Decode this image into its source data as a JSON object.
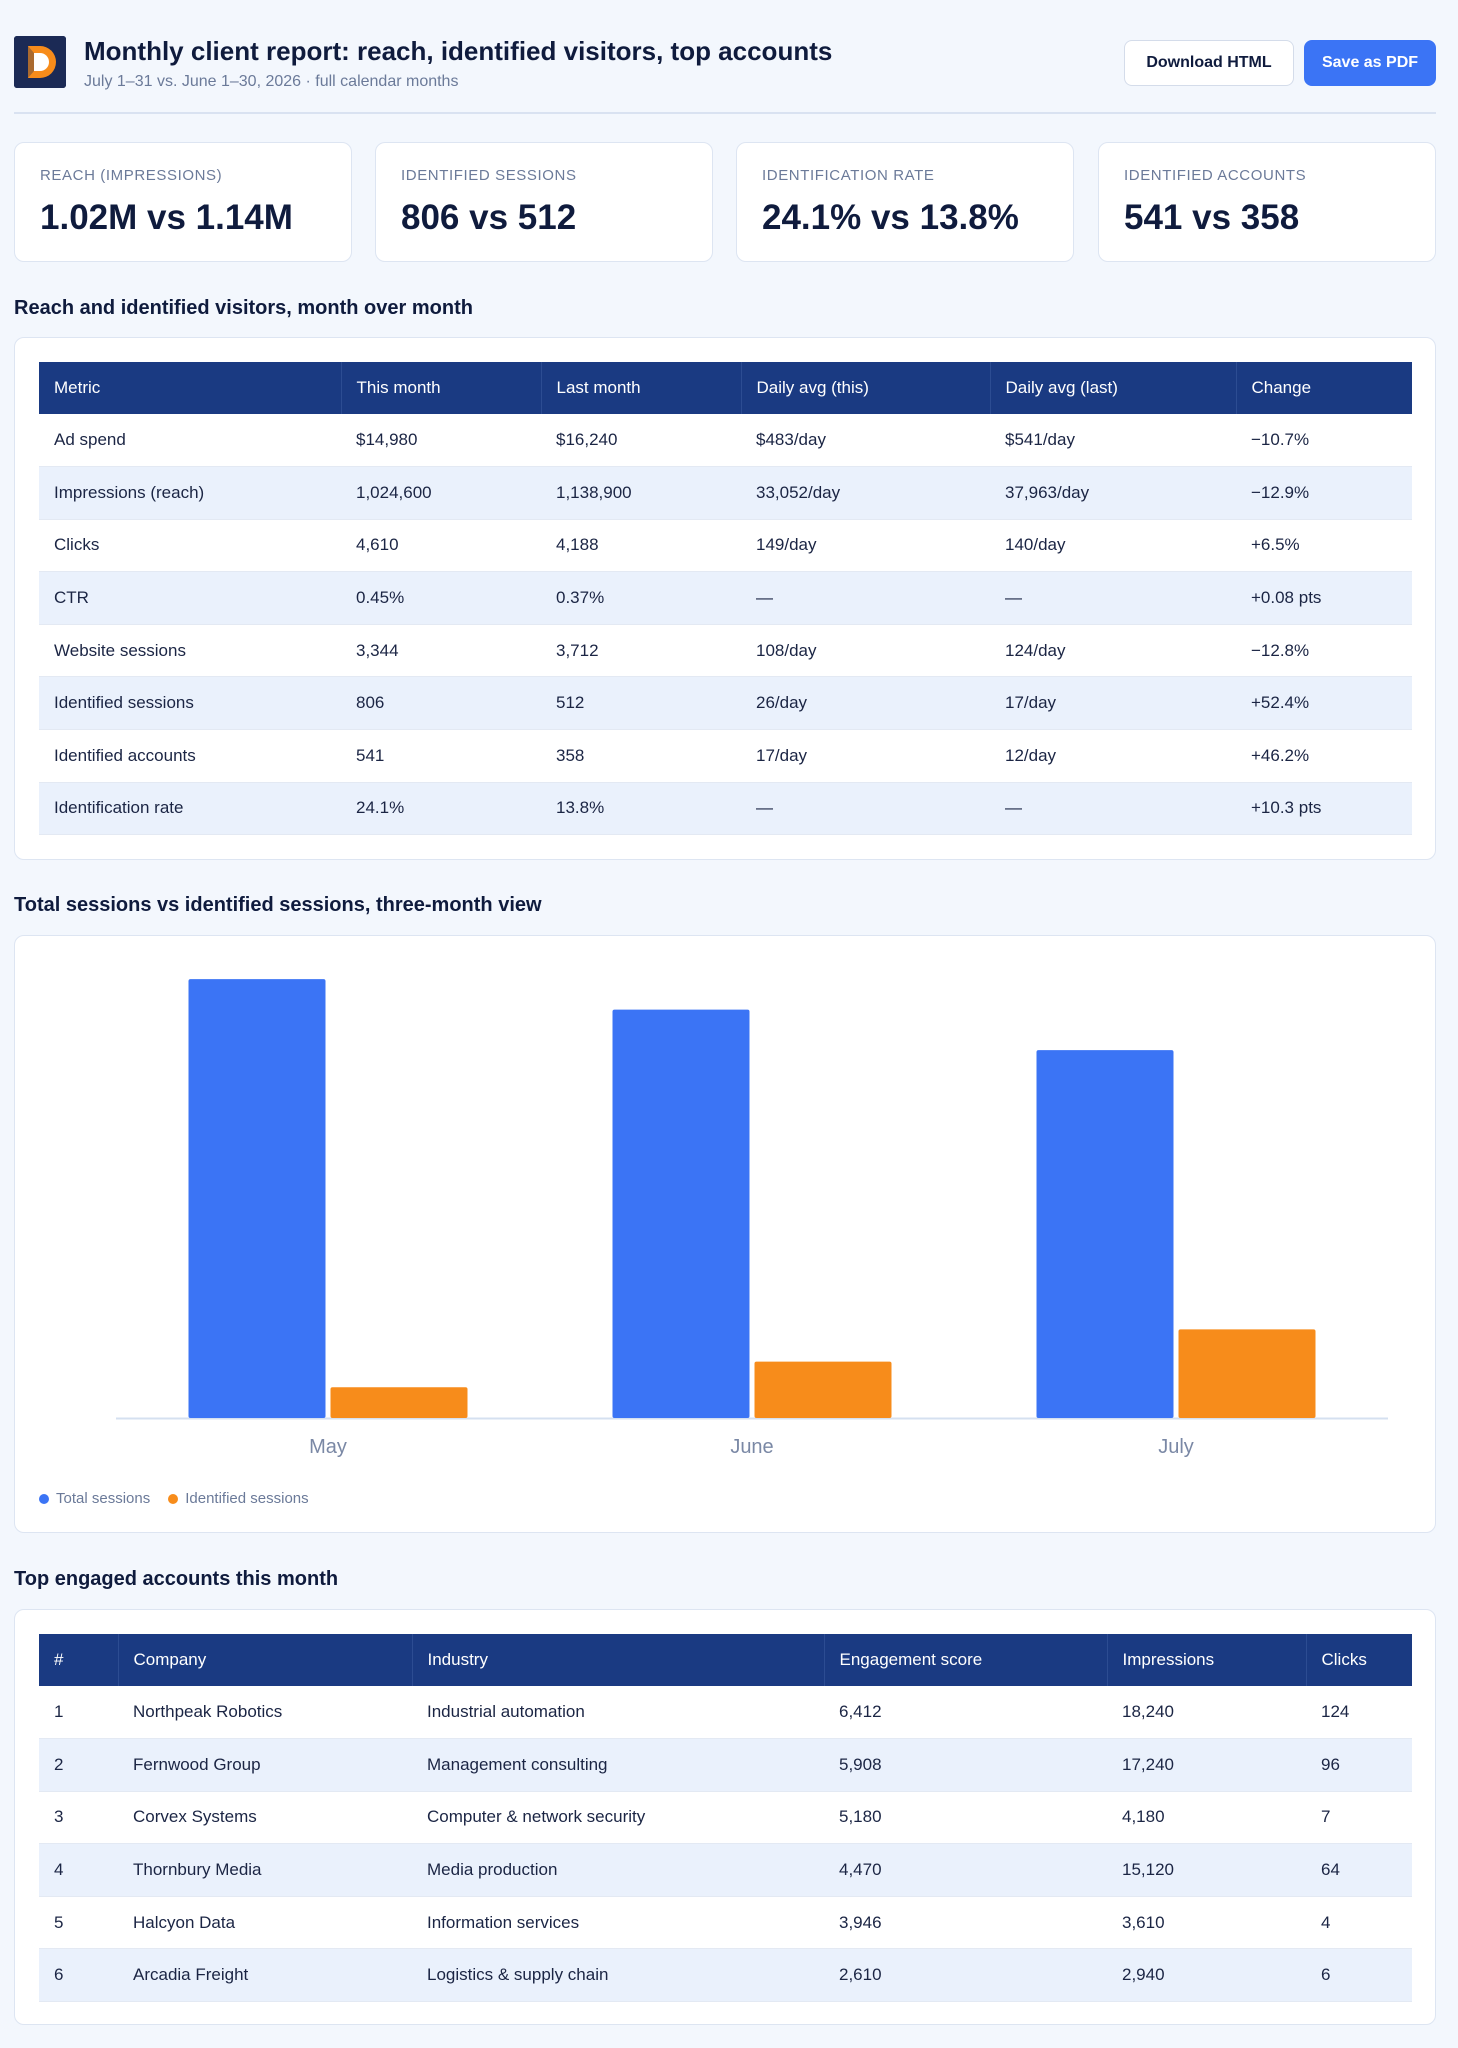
{
  "header": {
    "title": "Monthly client report: reach, identified visitors, top accounts",
    "subtitle": "July 1–31 vs. June 1–30, 2026 · full calendar months",
    "download_label": "Download HTML",
    "save_label": "Save as PDF"
  },
  "kpis": [
    {
      "label": "REACH (IMPRESSIONS)",
      "value": "1.02M vs 1.14M"
    },
    {
      "label": "IDENTIFIED SESSIONS",
      "value": "806 vs 512"
    },
    {
      "label": "IDENTIFICATION RATE",
      "value": "24.1% vs 13.8%"
    },
    {
      "label": "IDENTIFIED ACCOUNTS",
      "value": "541 vs 358"
    }
  ],
  "reach_section": {
    "title": "Reach and identified visitors, month over month",
    "columns": [
      "Metric",
      "This month",
      "Last month",
      "Daily avg (this)",
      "Daily avg (last)",
      "Change"
    ],
    "rows": [
      [
        "Ad spend",
        "$14,980",
        "$16,240",
        "$483/day",
        "$541/day",
        "−10.7%"
      ],
      [
        "Impressions (reach)",
        "1,024,600",
        "1,138,900",
        "33,052/day",
        "37,963/day",
        "−12.9%"
      ],
      [
        "Clicks",
        "4,610",
        "4,188",
        "149/day",
        "140/day",
        "+6.5%"
      ],
      [
        "CTR",
        "0.45%",
        "0.37%",
        "—",
        "—",
        "+0.08 pts"
      ],
      [
        "Website sessions",
        "3,344",
        "3,712",
        "108/day",
        "124/day",
        "−12.8%"
      ],
      [
        "Identified sessions",
        "806",
        "512",
        "26/day",
        "17/day",
        "+52.4%"
      ],
      [
        "Identified accounts",
        "541",
        "358",
        "17/day",
        "12/day",
        "+46.2%"
      ],
      [
        "Identification rate",
        "24.1%",
        "13.8%",
        "—",
        "—",
        "+10.3 pts"
      ]
    ]
  },
  "sessions_section": {
    "title": "Total sessions vs identified sessions, three-month view"
  },
  "chart_data": {
    "type": "bar",
    "categories": [
      "May",
      "June",
      "July"
    ],
    "series": [
      {
        "name": "Total sessions",
        "values": [
          3990,
          3712,
          3344
        ],
        "color": "#3b74f5"
      },
      {
        "name": "Identified sessions",
        "values": [
          280,
          512,
          806
        ],
        "color": "#f78c1b"
      }
    ],
    "ylim": [
      0,
      4000
    ],
    "grid": false,
    "legend": "bottom-left"
  },
  "accounts_section": {
    "title": "Top engaged accounts this month",
    "columns": [
      "#",
      "Company",
      "Industry",
      "Engagement score",
      "Impressions",
      "Clicks"
    ],
    "rows": [
      [
        "1",
        "Northpeak Robotics",
        "Industrial automation",
        "6,412",
        "18,240",
        "124"
      ],
      [
        "2",
        "Fernwood Group",
        "Management consulting",
        "5,908",
        "17,240",
        "96"
      ],
      [
        "3",
        "Corvex Systems",
        "Computer & network security",
        "5,180",
        "4,180",
        "7"
      ],
      [
        "4",
        "Thornbury Media",
        "Media production",
        "4,470",
        "15,120",
        "64"
      ],
      [
        "5",
        "Halcyon Data",
        "Information services",
        "3,946",
        "3,610",
        "4"
      ],
      [
        "6",
        "Arcadia Freight",
        "Logistics & supply chain",
        "2,610",
        "2,940",
        "6"
      ]
    ]
  }
}
